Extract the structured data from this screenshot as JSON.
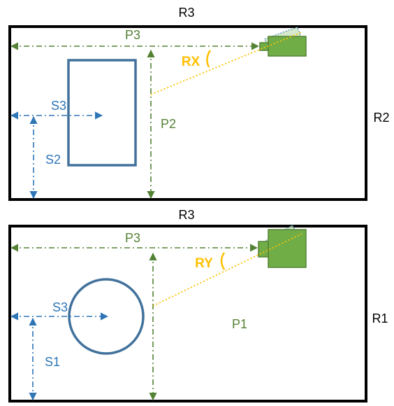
{
  "colors": {
    "frame": "#000000",
    "green": "#548235",
    "green_fill": "#70AD47",
    "green_light": "#C5E0B4",
    "blue": "#2E75B6",
    "blue_dark": "#41719C",
    "yellow": "#FFC000"
  },
  "top_panel": {
    "label_r3": "R3",
    "label_r2": "R2",
    "label_p3": "P3",
    "label_p2": "P2",
    "label_rx": "RX",
    "label_s3": "S3",
    "label_s2": "S2",
    "shape": "rectangle"
  },
  "bottom_panel": {
    "label_r3": "R3",
    "label_r1": "R1",
    "label_p3": "P3",
    "label_p1": "P1",
    "label_ry": "RY",
    "label_s3": "S3",
    "label_s1": "S1",
    "shape": "circle"
  }
}
